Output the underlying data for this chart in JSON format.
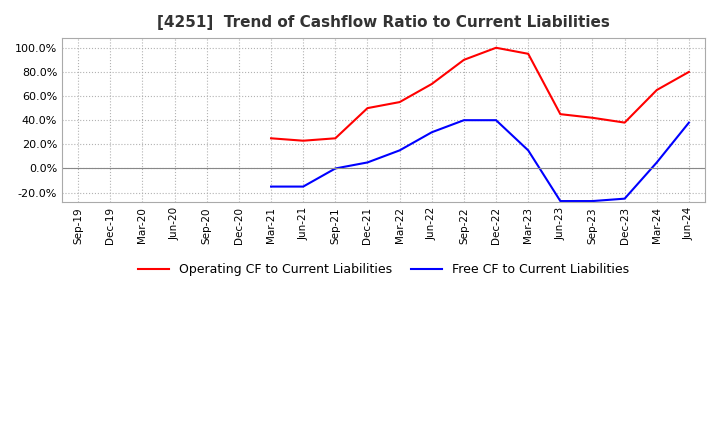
{
  "title": "[4251]  Trend of Cashflow Ratio to Current Liabilities",
  "x_labels": [
    "Sep-19",
    "Dec-19",
    "Mar-20",
    "Jun-20",
    "Sep-20",
    "Dec-20",
    "Mar-21",
    "Jun-21",
    "Sep-21",
    "Dec-21",
    "Mar-22",
    "Jun-22",
    "Sep-22",
    "Dec-22",
    "Mar-23",
    "Jun-23",
    "Sep-23",
    "Dec-23",
    "Mar-24",
    "Jun-24"
  ],
  "operating_cf": [
    null,
    null,
    null,
    null,
    null,
    null,
    25.0,
    23.0,
    25.0,
    50.0,
    55.0,
    70.0,
    90.0,
    100.0,
    95.0,
    45.0,
    42.0,
    38.0,
    65.0,
    80.0
  ],
  "free_cf": [
    null,
    null,
    null,
    null,
    null,
    null,
    -15.0,
    -15.0,
    0.0,
    5.0,
    15.0,
    30.0,
    40.0,
    40.0,
    15.0,
    -27.0,
    -27.0,
    -25.0,
    5.0,
    38.0
  ],
  "operating_color": "#ff0000",
  "free_color": "#0000ff",
  "ylim": [
    -28.0,
    108.0
  ],
  "yticks": [
    -20.0,
    0.0,
    20.0,
    40.0,
    60.0,
    80.0,
    100.0
  ],
  "background_color": "#ffffff",
  "grid_color": "#aaaaaa",
  "legend_labels": [
    "Operating CF to Current Liabilities",
    "Free CF to Current Liabilities"
  ]
}
